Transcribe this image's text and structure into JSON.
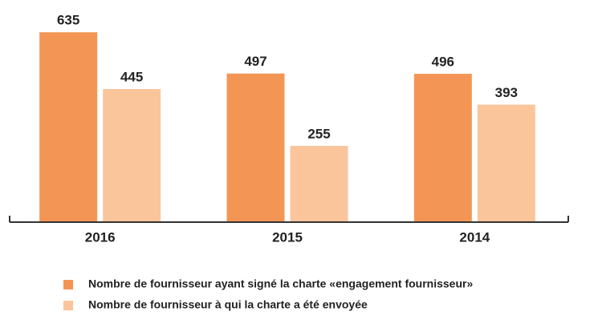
{
  "chart_data": {
    "type": "bar",
    "categories": [
      "2016",
      "2015",
      "2014"
    ],
    "series": [
      {
        "name": "Nombre de fournisseur ayant signé la charte «engagement fournisseur»",
        "color": "#f39655",
        "values": [
          635,
          497,
          496
        ]
      },
      {
        "name": "Nombre de fournisseur à qui la charte a été envoyée",
        "color": "#fbc59b",
        "values": [
          445,
          255,
          393
        ]
      }
    ],
    "ylim": [
      0,
      700
    ]
  }
}
